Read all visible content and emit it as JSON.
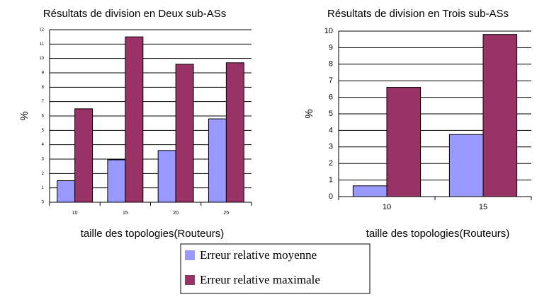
{
  "chart_data": [
    {
      "type": "bar",
      "title": "Résultats de division en Deux sub-ASs",
      "xlabel": "taille des topologies(Routeurs)",
      "ylabel": "%",
      "categories": [
        "10",
        "15",
        "20",
        "25"
      ],
      "series": [
        {
          "name": "Erreur relative moyenne",
          "color": "#9999ff",
          "values": [
            1.5,
            2.95,
            3.6,
            5.8
          ]
        },
        {
          "name": "Erreur relative maximale",
          "color": "#993366",
          "values": [
            6.5,
            11.5,
            9.6,
            9.7
          ]
        }
      ],
      "ylim": [
        0,
        12
      ],
      "yticks": [
        0,
        1,
        2,
        3,
        4,
        5,
        6,
        7,
        8,
        9,
        10,
        11,
        12
      ],
      "grid": true
    },
    {
      "type": "bar",
      "title": "Résultats de division en Trois sub-ASs",
      "xlabel": "taille des topologies(Routeurs)",
      "ylabel": "%",
      "categories": [
        "10",
        "15"
      ],
      "series": [
        {
          "color": "#9999ff",
          "values": [
            0.65,
            3.75
          ]
        },
        {
          "color": "#993366",
          "values": [
            6.6,
            9.8
          ]
        }
      ],
      "ylim": [
        0,
        10
      ],
      "yticks": [
        0,
        1,
        2,
        3,
        4,
        5,
        6,
        7,
        8,
        9,
        10
      ],
      "grid": true
    }
  ]
}
